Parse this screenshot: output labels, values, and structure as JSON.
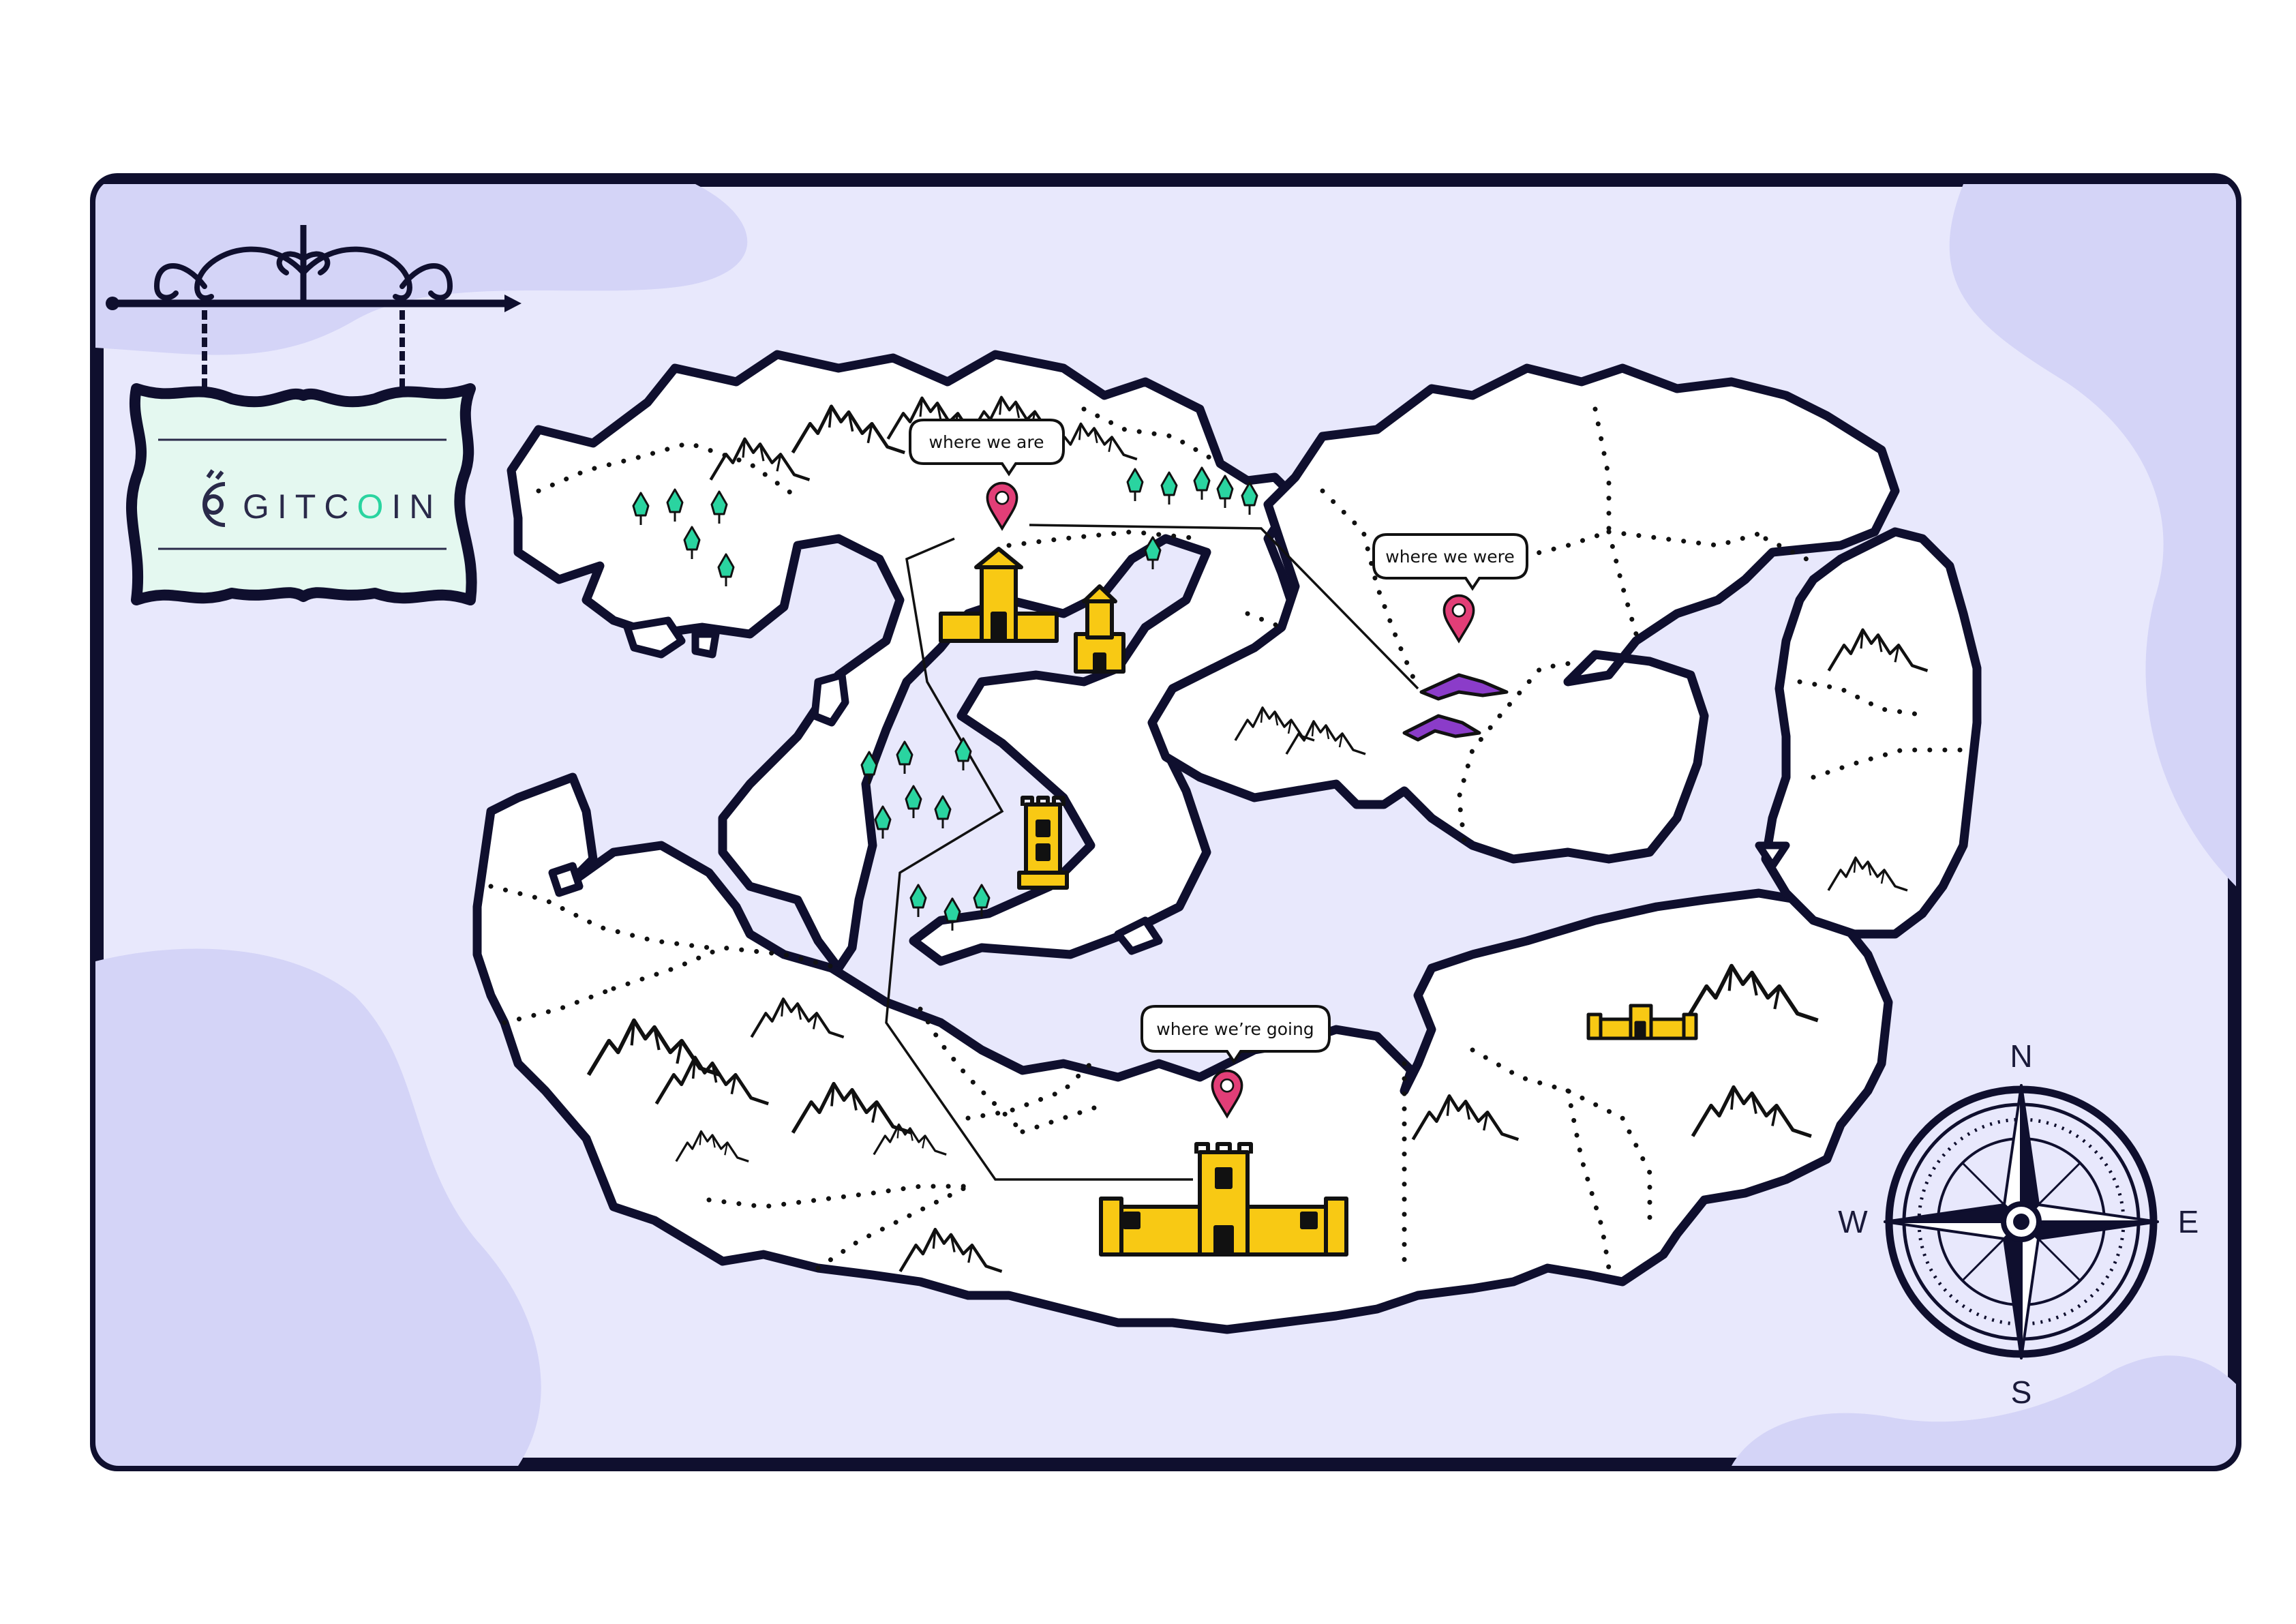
{
  "colors": {
    "sea": "#e8e8fc",
    "sea_dark": "#d4d4f7",
    "frame": "#0f0f2e",
    "land": "#ffffff",
    "castle": "#f8c914",
    "tent": "#8b3cc9",
    "tree": "#2ad4a0",
    "pin": "#e23e77",
    "sign_board": "#e4f8f0",
    "logo_accent": "#2ad4a0"
  },
  "sign": {
    "logo_text_before": "GITC",
    "logo_text_accent": "O",
    "logo_text_after": "IN"
  },
  "markers": [
    {
      "label": "where we are",
      "icon": "location-pin-icon"
    },
    {
      "label": "where we were",
      "icon": "location-pin-icon"
    },
    {
      "label": "where we’re going",
      "icon": "location-pin-icon"
    }
  ],
  "compass": {
    "north": "N",
    "south": "S",
    "east": "E",
    "west": "W"
  }
}
